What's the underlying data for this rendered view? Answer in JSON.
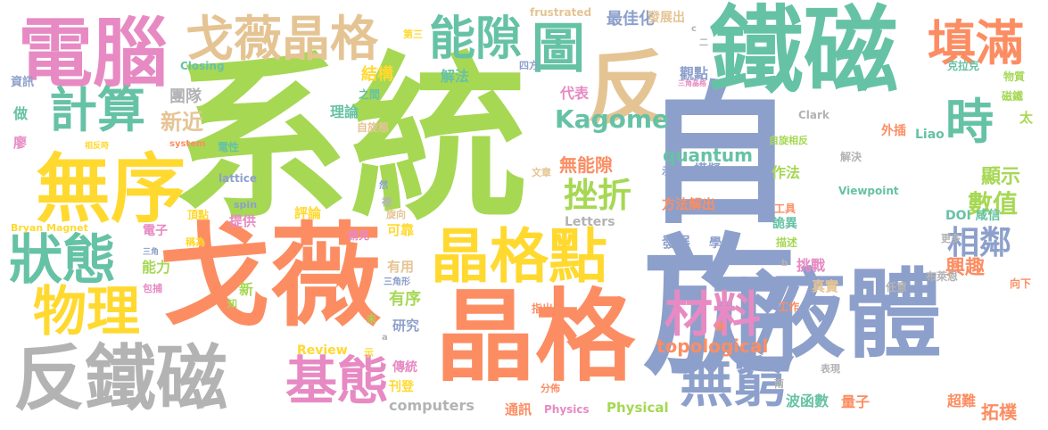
{
  "palette": {
    "green": "#a6d854",
    "orange": "#fc8d62",
    "blue": "#8da0cb",
    "teal": "#66c2a5",
    "pink": "#e78ac3",
    "yellow": "#ffd92f",
    "tan": "#e5c494",
    "gray": "#b3b3b3"
  },
  "words": [
    {
      "text": "系統",
      "color": "green"
    },
    {
      "text": "自旋",
      "color": "blue"
    },
    {
      "text": "戈薇",
      "color": "orange"
    },
    {
      "text": "晶格",
      "color": "orange"
    },
    {
      "text": "鐵磁",
      "color": "teal"
    },
    {
      "text": "液體",
      "color": "blue"
    },
    {
      "text": "反鐵磁",
      "color": "gray"
    },
    {
      "text": "電腦",
      "color": "pink"
    },
    {
      "text": "無序",
      "color": "yellow"
    },
    {
      "text": "戈薇晶格",
      "color": "tan"
    },
    {
      "text": "晶格點",
      "color": "yellow"
    },
    {
      "text": "反",
      "color": "tan"
    },
    {
      "text": "圖",
      "color": "teal"
    },
    {
      "text": "能隙",
      "color": "teal"
    },
    {
      "text": "狀態",
      "color": "teal"
    },
    {
      "text": "物理",
      "color": "yellow"
    },
    {
      "text": "基態",
      "color": "pink"
    },
    {
      "text": "填滿",
      "color": "orange"
    },
    {
      "text": "時",
      "color": "teal"
    },
    {
      "text": "無窮",
      "color": "blue"
    },
    {
      "text": "材料",
      "color": "pink"
    },
    {
      "text": "計算",
      "color": "teal"
    },
    {
      "text": "Kagome",
      "color": "teal"
    },
    {
      "text": "相鄰",
      "color": "blue"
    },
    {
      "text": "挫折",
      "color": "green"
    },
    {
      "text": "quantum",
      "color": "teal"
    },
    {
      "text": "topological",
      "color": "orange"
    },
    {
      "text": "無能隙",
      "color": "orange"
    },
    {
      "text": "數值",
      "color": "green"
    },
    {
      "text": "顯示",
      "color": "green"
    },
    {
      "text": "興趣",
      "color": "orange"
    },
    {
      "text": "新近",
      "color": "tan"
    },
    {
      "text": "最佳化",
      "color": "blue"
    },
    {
      "text": "解法",
      "color": "teal"
    },
    {
      "text": "結構",
      "color": "yellow"
    },
    {
      "text": "理論",
      "color": "teal"
    },
    {
      "text": "團隊",
      "color": "gray"
    },
    {
      "text": "代表",
      "color": "pink"
    },
    {
      "text": "觀點",
      "color": "blue"
    },
    {
      "text": "發展出",
      "color": "tan"
    },
    {
      "text": "frustrated",
      "color": "tan"
    },
    {
      "text": "第三",
      "color": "yellow"
    },
    {
      "text": "Closing",
      "color": "teal"
    },
    {
      "text": "資訊",
      "color": "blue"
    },
    {
      "text": "做",
      "color": "teal"
    },
    {
      "text": "廖",
      "color": "pink"
    },
    {
      "text": "之間",
      "color": "teal"
    },
    {
      "text": "四方",
      "color": "blue"
    },
    {
      "text": "克拉克",
      "color": "teal"
    },
    {
      "text": "物質",
      "color": "green"
    },
    {
      "text": "磁鐵",
      "color": "green"
    },
    {
      "text": "太",
      "color": "green"
    },
    {
      "text": "Liao",
      "color": "teal"
    },
    {
      "text": "外插",
      "color": "orange"
    },
    {
      "text": "Clark",
      "color": "gray"
    },
    {
      "text": "自旋態",
      "color": "tan"
    },
    {
      "text": "自旋相反",
      "color": "green"
    },
    {
      "text": "三角晶格",
      "color": "pink"
    },
    {
      "text": "電性",
      "color": "teal"
    },
    {
      "text": "system",
      "color": "orange"
    },
    {
      "text": "相反時",
      "color": "yellow"
    },
    {
      "text": "lattice",
      "color": "blue"
    },
    {
      "text": "然",
      "color": "blue"
    },
    {
      "text": "文章",
      "color": "tan"
    },
    {
      "text": "解決",
      "color": "gray"
    },
    {
      "text": "模擬",
      "color": "blue"
    },
    {
      "text": "示為",
      "color": "blue"
    },
    {
      "text": "作法",
      "color": "green"
    },
    {
      "text": "Viewpoint",
      "color": "teal"
    },
    {
      "text": "方法解出",
      "color": "orange"
    },
    {
      "text": "DOI 咸信",
      "color": "teal"
    },
    {
      "text": "spin",
      "color": "blue"
    },
    {
      "text": "提供",
      "color": "pink"
    },
    {
      "text": "評論",
      "color": "yellow"
    },
    {
      "text": "可靠",
      "color": "yellow"
    },
    {
      "text": "Letters",
      "color": "gray"
    },
    {
      "text": "旋向",
      "color": "tan"
    },
    {
      "text": "工具",
      "color": "orange"
    },
    {
      "text": "詭異",
      "color": "teal"
    },
    {
      "text": "頂點",
      "color": "yellow"
    },
    {
      "text": "Bryan Magnet",
      "color": "yellow"
    },
    {
      "text": "電子",
      "color": "pink"
    },
    {
      "text": "稱為",
      "color": "yellow"
    },
    {
      "text": "請見",
      "color": "pink"
    },
    {
      "text": "發展",
      "color": "blue"
    },
    {
      "text": "學者",
      "color": "blue"
    },
    {
      "text": "描述",
      "color": "green"
    },
    {
      "text": "更多",
      "color": "gray"
    },
    {
      "text": "裡",
      "color": "gray"
    },
    {
      "text": "三角",
      "color": "blue"
    },
    {
      "text": "能力",
      "color": "green"
    },
    {
      "text": "有用",
      "color": "tan"
    },
    {
      "text": "新",
      "color": "green"
    },
    {
      "text": "三角形",
      "color": "blue"
    },
    {
      "text": "挑戰",
      "color": "pink"
    },
    {
      "text": "任意",
      "color": "gray"
    },
    {
      "text": "布萊恩",
      "color": "gray"
    },
    {
      "text": "向下",
      "color": "orange"
    },
    {
      "text": "PhysRevLett",
      "color": "blue"
    },
    {
      "text": "真實",
      "color": "tan"
    },
    {
      "text": "有序",
      "color": "green"
    },
    {
      "text": "包捕",
      "color": "pink"
    },
    {
      "text": "知",
      "color": "green"
    },
    {
      "text": "未",
      "color": "green"
    },
    {
      "text": "指出",
      "color": "orange"
    },
    {
      "text": "研究",
      "color": "blue"
    },
    {
      "text": "工作",
      "color": "orange"
    },
    {
      "text": "Review",
      "color": "yellow"
    },
    {
      "text": "示",
      "color": "yellow"
    },
    {
      "text": "選",
      "color": "orange"
    },
    {
      "text": "傳統",
      "color": "pink"
    },
    {
      "text": "表現",
      "color": "gray"
    },
    {
      "text": "刊登",
      "color": "yellow"
    },
    {
      "text": "分佈",
      "color": "orange"
    },
    {
      "text": "兩",
      "color": "gray"
    },
    {
      "text": "波函數",
      "color": "teal"
    },
    {
      "text": "量子",
      "color": "orange"
    },
    {
      "text": "computers",
      "color": "gray"
    },
    {
      "text": "通訊",
      "color": "orange"
    },
    {
      "text": "Physics",
      "color": "pink"
    },
    {
      "text": "Physical",
      "color": "green"
    },
    {
      "text": "超難",
      "color": "orange"
    },
    {
      "text": "拓樸",
      "color": "orange"
    },
    {
      "text": "a",
      "color": "gray"
    },
    {
      "text": "b",
      "color": "gray"
    },
    {
      "text": "c",
      "color": "gray"
    },
    {
      "text": "二",
      "color": "gray"
    }
  ]
}
